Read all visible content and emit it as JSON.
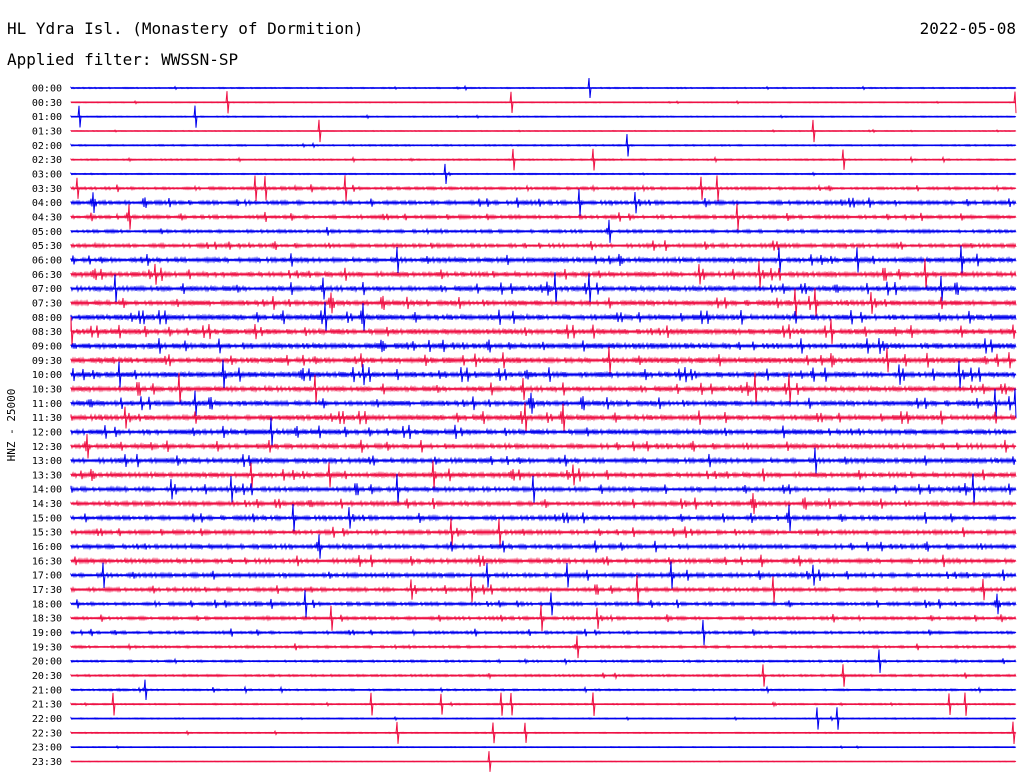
{
  "header": {
    "title": "HL Ydra Isl. (Monastery of Dormition)",
    "date": "2022-05-08",
    "filter": "Applied filter: WWSSN-SP"
  },
  "chart_data": {
    "type": "line",
    "title": "HL Ydra Isl. (Monastery of Dormition)",
    "ylabel": "HNZ - 25000",
    "colors": {
      "even_row": "#0000ee",
      "odd_row": "#ee1144"
    },
    "rows": [
      {
        "time": "00:00",
        "activity": 0.2
      },
      {
        "time": "00:30",
        "activity": 0.15
      },
      {
        "time": "01:00",
        "activity": 0.2
      },
      {
        "time": "01:30",
        "activity": 0.15
      },
      {
        "time": "02:00",
        "activity": 0.25
      },
      {
        "time": "02:30",
        "activity": 0.25
      },
      {
        "time": "03:00",
        "activity": 0.2
      },
      {
        "time": "03:30",
        "activity": 0.45
      },
      {
        "time": "04:00",
        "activity": 0.6
      },
      {
        "time": "04:30",
        "activity": 0.55
      },
      {
        "time": "05:00",
        "activity": 0.5
      },
      {
        "time": "05:30",
        "activity": 0.6
      },
      {
        "time": "06:00",
        "activity": 0.75
      },
      {
        "time": "06:30",
        "activity": 0.75
      },
      {
        "time": "07:00",
        "activity": 0.8
      },
      {
        "time": "07:30",
        "activity": 0.8
      },
      {
        "time": "08:00",
        "activity": 0.85
      },
      {
        "time": "08:30",
        "activity": 0.85
      },
      {
        "time": "09:00",
        "activity": 0.9
      },
      {
        "time": "09:30",
        "activity": 0.9
      },
      {
        "time": "10:00",
        "activity": 0.85
      },
      {
        "time": "10:30",
        "activity": 0.8
      },
      {
        "time": "11:00",
        "activity": 0.8
      },
      {
        "time": "11:30",
        "activity": 0.8
      },
      {
        "time": "12:00",
        "activity": 0.8
      },
      {
        "time": "12:30",
        "activity": 0.75
      },
      {
        "time": "13:00",
        "activity": 0.75
      },
      {
        "time": "13:30",
        "activity": 0.75
      },
      {
        "time": "14:00",
        "activity": 0.7
      },
      {
        "time": "14:30",
        "activity": 0.7
      },
      {
        "time": "15:00",
        "activity": 0.65
      },
      {
        "time": "15:30",
        "activity": 0.65
      },
      {
        "time": "16:00",
        "activity": 0.7
      },
      {
        "time": "16:30",
        "activity": 0.7
      },
      {
        "time": "17:00",
        "activity": 0.65
      },
      {
        "time": "17:30",
        "activity": 0.6
      },
      {
        "time": "18:00",
        "activity": 0.55
      },
      {
        "time": "18:30",
        "activity": 0.5
      },
      {
        "time": "19:00",
        "activity": 0.45
      },
      {
        "time": "19:30",
        "activity": 0.4
      },
      {
        "time": "20:00",
        "activity": 0.35
      },
      {
        "time": "20:30",
        "activity": 0.35
      },
      {
        "time": "21:00",
        "activity": 0.3
      },
      {
        "time": "21:30",
        "activity": 0.25
      },
      {
        "time": "22:00",
        "activity": 0.2
      },
      {
        "time": "22:30",
        "activity": 0.2
      },
      {
        "time": "23:00",
        "activity": 0.15
      },
      {
        "time": "23:30",
        "activity": 0.1
      }
    ],
    "grid": false,
    "legend": "none"
  }
}
